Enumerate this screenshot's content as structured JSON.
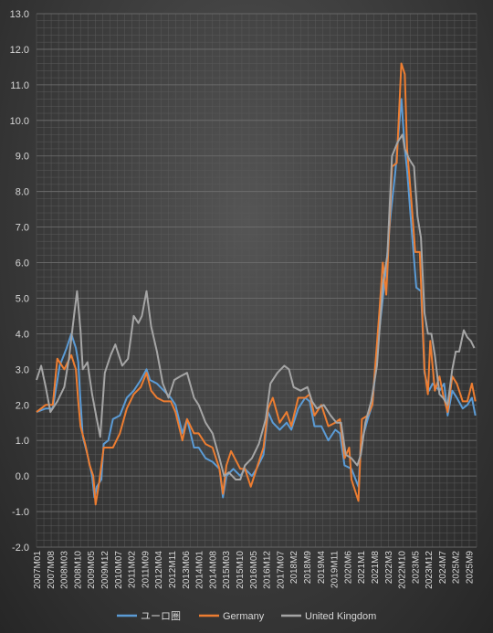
{
  "chart_data": {
    "type": "line",
    "ylim": [
      -2.0,
      13.0
    ],
    "y_ticks": [
      "-2.0",
      "-1.0",
      "0.0",
      "1.0",
      "2.0",
      "3.0",
      "4.0",
      "5.0",
      "6.0",
      "7.0",
      "8.0",
      "9.0",
      "10.0",
      "11.0",
      "12.0",
      "13.0"
    ],
    "x_tick_labels": [
      "2007M01",
      "2007M08",
      "2008M03",
      "2008M10",
      "2009M05",
      "2009M12",
      "2010M07",
      "2011M02",
      "2011M09",
      "2012M04",
      "2012M11",
      "2013M06",
      "2014M01",
      "2014M08",
      "2015M03",
      "2015M10",
      "2016M05",
      "2016M12",
      "2017M07",
      "2018M2",
      "2018M9",
      "2019M4",
      "2019M11",
      "2020M6",
      "2021M1",
      "2021M8",
      "2022M3",
      "2022M10",
      "2023M5",
      "2023M12",
      "2024M7",
      "2025M2",
      "2025M9"
    ],
    "x_range": [
      "2007M01",
      "2025M12"
    ],
    "grid": true,
    "legend_position": "bottom",
    "series": [
      {
        "name": "ユーロ圏",
        "color": "#5b9bd5",
        "key": "ea",
        "points": [
          [
            2007,
            1.8
          ],
          [
            2007.4,
            1.9
          ],
          [
            2007.7,
            1.9
          ],
          [
            2008.0,
            3.1
          ],
          [
            2008.3,
            3.6
          ],
          [
            2008.5,
            4.0
          ],
          [
            2008.7,
            3.6
          ],
          [
            2008.8,
            3.2
          ],
          [
            2008.9,
            2.1
          ],
          [
            2009.0,
            1.1
          ],
          [
            2009.2,
            0.6
          ],
          [
            2009.4,
            0.0
          ],
          [
            2009.5,
            -0.6
          ],
          [
            2009.6,
            -0.3
          ],
          [
            2009.8,
            -0.1
          ],
          [
            2009.9,
            0.9
          ],
          [
            2010.1,
            1.0
          ],
          [
            2010.3,
            1.6
          ],
          [
            2010.6,
            1.7
          ],
          [
            2010.9,
            2.2
          ],
          [
            2011.2,
            2.4
          ],
          [
            2011.5,
            2.7
          ],
          [
            2011.75,
            3.0
          ],
          [
            2011.9,
            2.7
          ],
          [
            2012.2,
            2.6
          ],
          [
            2012.5,
            2.4
          ],
          [
            2012.8,
            2.2
          ],
          [
            2013.0,
            2.0
          ],
          [
            2013.3,
            1.2
          ],
          [
            2013.5,
            1.6
          ],
          [
            2013.8,
            0.8
          ],
          [
            2014.0,
            0.8
          ],
          [
            2014.3,
            0.5
          ],
          [
            2014.6,
            0.4
          ],
          [
            2014.9,
            0.2
          ],
          [
            2015.05,
            -0.6
          ],
          [
            2015.2,
            0.0
          ],
          [
            2015.5,
            0.2
          ],
          [
            2015.8,
            0.0
          ],
          [
            2016.0,
            0.2
          ],
          [
            2016.3,
            0.0
          ],
          [
            2016.5,
            0.2
          ],
          [
            2016.8,
            0.6
          ],
          [
            2017.0,
            1.8
          ],
          [
            2017.2,
            1.5
          ],
          [
            2017.5,
            1.3
          ],
          [
            2017.8,
            1.5
          ],
          [
            2018.0,
            1.3
          ],
          [
            2018.3,
            1.9
          ],
          [
            2018.6,
            2.2
          ],
          [
            2018.8,
            2.1
          ],
          [
            2019.0,
            1.4
          ],
          [
            2019.3,
            1.4
          ],
          [
            2019.6,
            1.0
          ],
          [
            2019.9,
            1.3
          ],
          [
            2020.1,
            1.2
          ],
          [
            2020.3,
            0.3
          ],
          [
            2020.6,
            0.2
          ],
          [
            2020.9,
            -0.3
          ],
          [
            2021.0,
            0.9
          ],
          [
            2021.3,
            1.6
          ],
          [
            2021.5,
            2.0
          ],
          [
            2021.8,
            4.1
          ],
          [
            2021.95,
            5.0
          ],
          [
            2022.1,
            5.9
          ],
          [
            2022.3,
            7.4
          ],
          [
            2022.5,
            8.6
          ],
          [
            2022.75,
            10.6
          ],
          [
            2022.9,
            9.2
          ],
          [
            2023.0,
            8.6
          ],
          [
            2023.2,
            6.9
          ],
          [
            2023.4,
            5.3
          ],
          [
            2023.6,
            5.2
          ],
          [
            2023.75,
            2.9
          ],
          [
            2023.95,
            2.4
          ],
          [
            2024.1,
            2.6
          ],
          [
            2024.4,
            2.4
          ],
          [
            2024.6,
            2.6
          ],
          [
            2024.75,
            1.7
          ],
          [
            2024.95,
            2.4
          ],
          [
            2025.15,
            2.2
          ],
          [
            2025.4,
            1.9
          ],
          [
            2025.6,
            2.0
          ],
          [
            2025.8,
            2.2
          ],
          [
            2025.95,
            1.7
          ]
        ]
      },
      {
        "name": "Germany",
        "color": "#ed7d31",
        "key": "de",
        "points": [
          [
            2007,
            1.8
          ],
          [
            2007.4,
            2.0
          ],
          [
            2007.7,
            2.0
          ],
          [
            2007.9,
            3.3
          ],
          [
            2008.2,
            3.0
          ],
          [
            2008.5,
            3.4
          ],
          [
            2008.7,
            3.0
          ],
          [
            2008.8,
            2.1
          ],
          [
            2008.9,
            1.4
          ],
          [
            2009.1,
            0.9
          ],
          [
            2009.3,
            0.3
          ],
          [
            2009.45,
            0.0
          ],
          [
            2009.55,
            -0.8
          ],
          [
            2009.7,
            -0.2
          ],
          [
            2009.9,
            0.8
          ],
          [
            2010.1,
            0.8
          ],
          [
            2010.3,
            0.8
          ],
          [
            2010.6,
            1.2
          ],
          [
            2010.9,
            1.9
          ],
          [
            2011.2,
            2.3
          ],
          [
            2011.5,
            2.5
          ],
          [
            2011.75,
            2.9
          ],
          [
            2011.95,
            2.4
          ],
          [
            2012.2,
            2.2
          ],
          [
            2012.5,
            2.1
          ],
          [
            2012.8,
            2.1
          ],
          [
            2013.0,
            1.8
          ],
          [
            2013.3,
            1.0
          ],
          [
            2013.5,
            1.6
          ],
          [
            2013.8,
            1.2
          ],
          [
            2014.0,
            1.2
          ],
          [
            2014.3,
            0.9
          ],
          [
            2014.6,
            0.8
          ],
          [
            2014.9,
            0.2
          ],
          [
            2015.05,
            -0.5
          ],
          [
            2015.2,
            0.3
          ],
          [
            2015.4,
            0.7
          ],
          [
            2015.8,
            0.2
          ],
          [
            2016.0,
            0.2
          ],
          [
            2016.25,
            -0.3
          ],
          [
            2016.5,
            0.2
          ],
          [
            2016.8,
            0.8
          ],
          [
            2017.0,
            1.9
          ],
          [
            2017.2,
            2.2
          ],
          [
            2017.5,
            1.5
          ],
          [
            2017.8,
            1.8
          ],
          [
            2018.0,
            1.4
          ],
          [
            2018.3,
            2.2
          ],
          [
            2018.6,
            2.2
          ],
          [
            2018.8,
            2.3
          ],
          [
            2019.0,
            1.7
          ],
          [
            2019.3,
            2.0
          ],
          [
            2019.6,
            1.4
          ],
          [
            2019.9,
            1.5
          ],
          [
            2020.1,
            1.6
          ],
          [
            2020.3,
            0.5
          ],
          [
            2020.5,
            0.8
          ],
          [
            2020.6,
            -0.1
          ],
          [
            2020.9,
            -0.7
          ],
          [
            2021.05,
            1.6
          ],
          [
            2021.3,
            1.7
          ],
          [
            2021.5,
            2.0
          ],
          [
            2021.8,
            4.6
          ],
          [
            2021.95,
            6.0
          ],
          [
            2022.1,
            5.1
          ],
          [
            2022.35,
            8.7
          ],
          [
            2022.55,
            8.8
          ],
          [
            2022.75,
            11.6
          ],
          [
            2022.9,
            11.3
          ],
          [
            2023.0,
            9.2
          ],
          [
            2023.2,
            7.6
          ],
          [
            2023.35,
            6.3
          ],
          [
            2023.55,
            6.3
          ],
          [
            2023.75,
            3.0
          ],
          [
            2023.9,
            2.3
          ],
          [
            2024.0,
            3.8
          ],
          [
            2024.2,
            2.4
          ],
          [
            2024.4,
            2.8
          ],
          [
            2024.55,
            2.3
          ],
          [
            2024.75,
            1.8
          ],
          [
            2024.95,
            2.8
          ],
          [
            2025.15,
            2.6
          ],
          [
            2025.4,
            2.1
          ],
          [
            2025.6,
            2.1
          ],
          [
            2025.8,
            2.6
          ],
          [
            2025.95,
            2.1
          ]
        ]
      },
      {
        "name": "United Kingdom",
        "color": "#a5a5a5",
        "key": "uk",
        "points": [
          [
            2007,
            2.7
          ],
          [
            2007.2,
            3.1
          ],
          [
            2007.4,
            2.5
          ],
          [
            2007.6,
            1.8
          ],
          [
            2007.9,
            2.1
          ],
          [
            2008.2,
            2.5
          ],
          [
            2008.4,
            3.3
          ],
          [
            2008.6,
            4.4
          ],
          [
            2008.75,
            5.2
          ],
          [
            2008.9,
            4.1
          ],
          [
            2009.0,
            3.0
          ],
          [
            2009.2,
            3.2
          ],
          [
            2009.4,
            2.3
          ],
          [
            2009.6,
            1.6
          ],
          [
            2009.75,
            1.1
          ],
          [
            2009.95,
            2.9
          ],
          [
            2010.2,
            3.4
          ],
          [
            2010.4,
            3.7
          ],
          [
            2010.7,
            3.1
          ],
          [
            2010.95,
            3.3
          ],
          [
            2011.2,
            4.5
          ],
          [
            2011.4,
            4.3
          ],
          [
            2011.55,
            4.5
          ],
          [
            2011.75,
            5.2
          ],
          [
            2011.95,
            4.2
          ],
          [
            2012.2,
            3.5
          ],
          [
            2012.45,
            2.6
          ],
          [
            2012.7,
            2.2
          ],
          [
            2012.95,
            2.7
          ],
          [
            2013.2,
            2.8
          ],
          [
            2013.5,
            2.9
          ],
          [
            2013.8,
            2.2
          ],
          [
            2014.0,
            2.0
          ],
          [
            2014.3,
            1.5
          ],
          [
            2014.6,
            1.2
          ],
          [
            2014.9,
            0.5
          ],
          [
            2015.1,
            0.0
          ],
          [
            2015.3,
            0.1
          ],
          [
            2015.6,
            -0.1
          ],
          [
            2015.8,
            -0.1
          ],
          [
            2016.0,
            0.3
          ],
          [
            2016.3,
            0.5
          ],
          [
            2016.6,
            0.9
          ],
          [
            2016.9,
            1.6
          ],
          [
            2017.1,
            2.6
          ],
          [
            2017.4,
            2.9
          ],
          [
            2017.7,
            3.1
          ],
          [
            2017.9,
            3.0
          ],
          [
            2018.1,
            2.5
          ],
          [
            2018.4,
            2.4
          ],
          [
            2018.7,
            2.5
          ],
          [
            2018.9,
            2.1
          ],
          [
            2019.1,
            1.9
          ],
          [
            2019.4,
            2.0
          ],
          [
            2019.7,
            1.7
          ],
          [
            2019.95,
            1.5
          ],
          [
            2020.15,
            1.5
          ],
          [
            2020.35,
            0.6
          ],
          [
            2020.6,
            0.5
          ],
          [
            2020.85,
            0.3
          ],
          [
            2021.0,
            0.6
          ],
          [
            2021.2,
            1.5
          ],
          [
            2021.45,
            2.1
          ],
          [
            2021.7,
            3.1
          ],
          [
            2021.95,
            5.4
          ],
          [
            2022.15,
            6.2
          ],
          [
            2022.35,
            9.0
          ],
          [
            2022.6,
            9.4
          ],
          [
            2022.8,
            9.6
          ],
          [
            2022.9,
            9.2
          ],
          [
            2023.1,
            8.9
          ],
          [
            2023.3,
            8.7
          ],
          [
            2023.45,
            7.3
          ],
          [
            2023.6,
            6.7
          ],
          [
            2023.75,
            4.6
          ],
          [
            2023.9,
            4.0
          ],
          [
            2024.05,
            4.0
          ],
          [
            2024.2,
            3.4
          ],
          [
            2024.4,
            2.3
          ],
          [
            2024.55,
            2.2
          ],
          [
            2024.75,
            2.0
          ],
          [
            2024.95,
            3.0
          ],
          [
            2025.1,
            3.5
          ],
          [
            2025.25,
            3.5
          ],
          [
            2025.45,
            4.1
          ],
          [
            2025.6,
            3.9
          ],
          [
            2025.75,
            3.8
          ],
          [
            2025.9,
            3.6
          ]
        ]
      }
    ]
  }
}
